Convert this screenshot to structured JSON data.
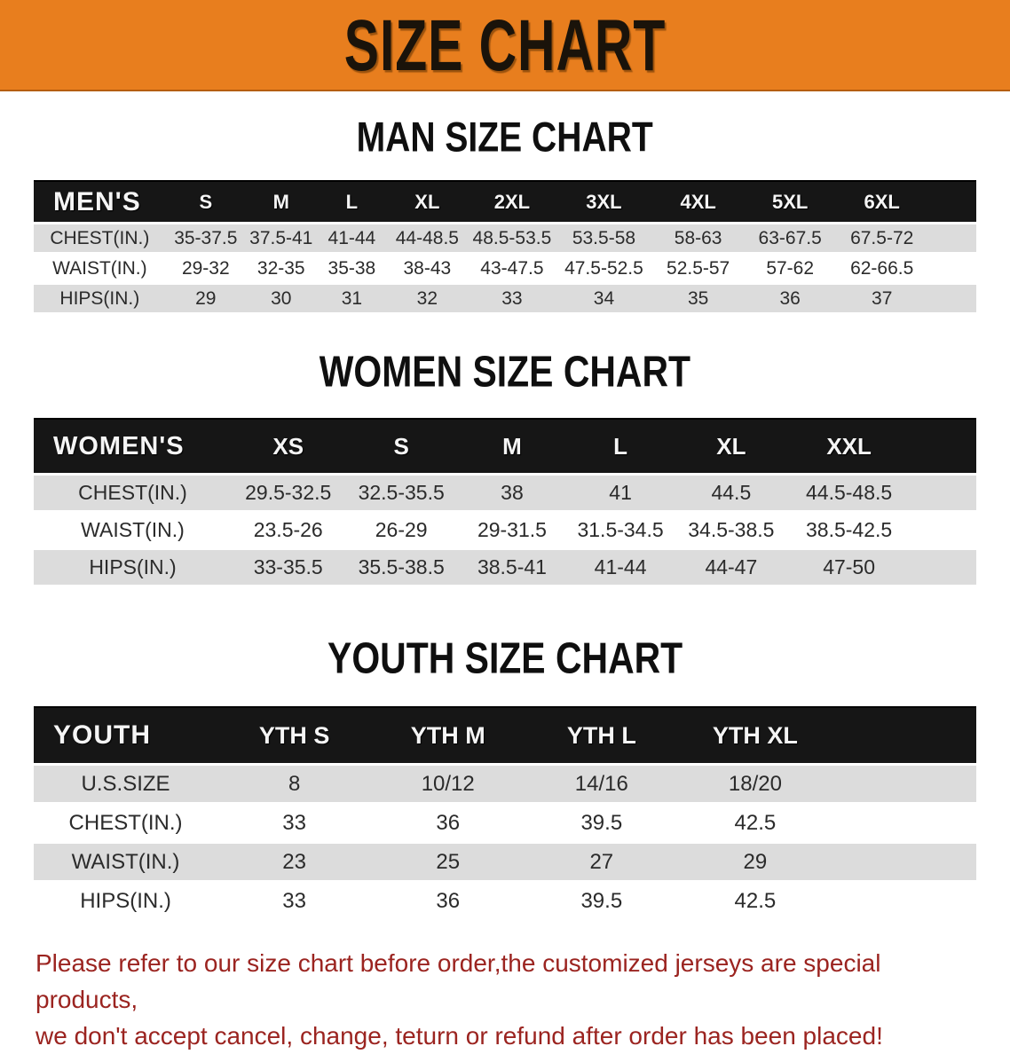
{
  "banner": {
    "title": "SIZE CHART"
  },
  "tables": [
    {
      "heading": "MAN SIZE CHART",
      "header_label": "MEN'S",
      "sizes": [
        "S",
        "M",
        "L",
        "XL",
        "2XL",
        "3XL",
        "4XL",
        "5XL",
        "6XL"
      ],
      "rows": [
        {
          "label": "CHEST(IN.)",
          "values": [
            "35-37.5",
            "37.5-41",
            "41-44",
            "44-48.5",
            "48.5-53.5",
            "53.5-58",
            "58-63",
            "63-67.5",
            "67.5-72"
          ]
        },
        {
          "label": "WAIST(IN.)",
          "values": [
            "29-32",
            "32-35",
            "35-38",
            "38-43",
            "43-47.5",
            "47.5-52.5",
            "52.5-57",
            "57-62",
            "62-66.5"
          ]
        },
        {
          "label": "HIPS(IN.)",
          "values": [
            "29",
            "30",
            "31",
            "32",
            "33",
            "34",
            "35",
            "36",
            "37"
          ]
        }
      ]
    },
    {
      "heading": "WOMEN SIZE CHART",
      "header_label": "WOMEN'S",
      "sizes": [
        "XS",
        "S",
        "M",
        "L",
        "XL",
        "XXL"
      ],
      "rows": [
        {
          "label": "CHEST(IN.)",
          "values": [
            "29.5-32.5",
            "32.5-35.5",
            "38",
            "41",
            "44.5",
            "44.5-48.5"
          ]
        },
        {
          "label": "WAIST(IN.)",
          "values": [
            "23.5-26",
            "26-29",
            "29-31.5",
            "31.5-34.5",
            "34.5-38.5",
            "38.5-42.5"
          ]
        },
        {
          "label": "HIPS(IN.)",
          "values": [
            "33-35.5",
            "35.5-38.5",
            "38.5-41",
            "41-44",
            "44-47",
            "47-50"
          ]
        }
      ]
    },
    {
      "heading": "YOUTH SIZE CHART",
      "header_label": "YOUTH",
      "sizes": [
        "YTH S",
        "YTH M",
        "YTH L",
        "YTH XL"
      ],
      "rows": [
        {
          "label": "U.S.SIZE",
          "values": [
            "8",
            "10/12",
            "14/16",
            "18/20"
          ]
        },
        {
          "label": "CHEST(IN.)",
          "values": [
            "33",
            "36",
            "39.5",
            "42.5"
          ]
        },
        {
          "label": "WAIST(IN.)",
          "values": [
            "23",
            "25",
            "27",
            "29"
          ]
        },
        {
          "label": "HIPS(IN.)",
          "values": [
            "33",
            "36",
            "39.5",
            "42.5"
          ]
        }
      ]
    }
  ],
  "disclaimer": {
    "lines": [
      "Please refer to our size chart before order,the customized jerseys are special products,",
      "we don't accept cancel, change, teturn or refund after order has been placed!"
    ]
  },
  "colors": {
    "banner_bg": "#E87E1E",
    "header_band": "#161616",
    "row_shade": "#DCDCDC",
    "disclaimer_text": "#9B2420"
  }
}
